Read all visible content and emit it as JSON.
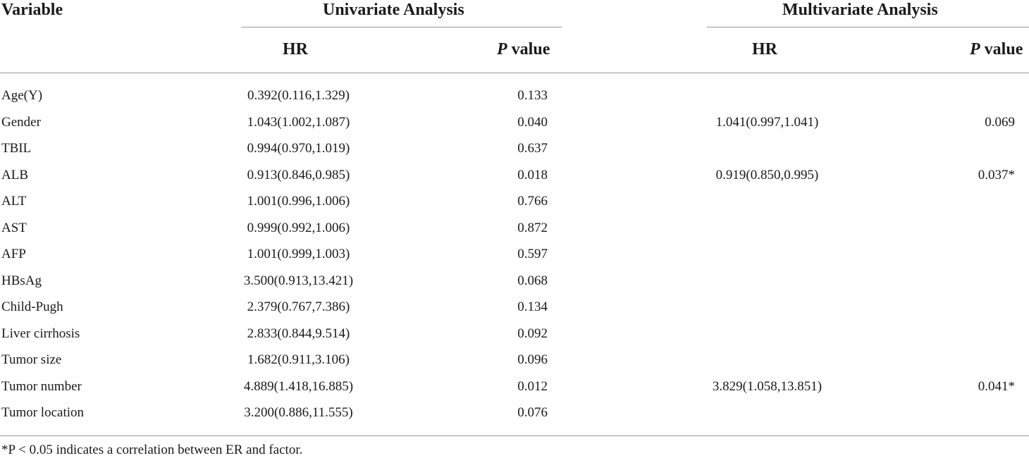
{
  "table": {
    "headers": {
      "variable": "Variable",
      "univariate": "Univariate Analysis",
      "multivariate": "Multivariate Analysis",
      "hr": "HR",
      "p_italic": "P",
      "p_rest": " value"
    },
    "rows": [
      {
        "variable": "Age(Y)",
        "uni_hr": "0.392(0.116,1.329)",
        "uni_p": "0.133",
        "multi_hr": "",
        "multi_p": ""
      },
      {
        "variable": "Gender",
        "uni_hr": "1.043(1.002,1.087)",
        "uni_p": "0.040",
        "multi_hr": "1.041(0.997,1.041)",
        "multi_p": "0.069"
      },
      {
        "variable": "TBIL",
        "uni_hr": "0.994(0.970,1.019)",
        "uni_p": "0.637",
        "multi_hr": "",
        "multi_p": ""
      },
      {
        "variable": "ALB",
        "uni_hr": "0.913(0.846,0.985)",
        "uni_p": "0.018",
        "multi_hr": "0.919(0.850,0.995)",
        "multi_p": "0.037*"
      },
      {
        "variable": "ALT",
        "uni_hr": "1.001(0.996,1.006)",
        "uni_p": "0.766",
        "multi_hr": "",
        "multi_p": ""
      },
      {
        "variable": "AST",
        "uni_hr": "0.999(0.992,1.006)",
        "uni_p": "0.872",
        "multi_hr": "",
        "multi_p": ""
      },
      {
        "variable": "AFP",
        "uni_hr": "1.001(0.999,1.003)",
        "uni_p": "0.597",
        "multi_hr": "",
        "multi_p": ""
      },
      {
        "variable": "HBsAg",
        "uni_hr": "3.500(0.913,13.421)",
        "uni_p": "0.068",
        "multi_hr": "",
        "multi_p": ""
      },
      {
        "variable": "Child-Pugh",
        "uni_hr": "2.379(0.767,7.386)",
        "uni_p": "0.134",
        "multi_hr": "",
        "multi_p": ""
      },
      {
        "variable": "Liver cirrhosis",
        "uni_hr": "2.833(0.844,9.514)",
        "uni_p": "0.092",
        "multi_hr": "",
        "multi_p": ""
      },
      {
        "variable": "Tumor size",
        "uni_hr": "1.682(0.911,3.106)",
        "uni_p": "0.096",
        "multi_hr": "",
        "multi_p": ""
      },
      {
        "variable": "Tumor number",
        "uni_hr": "4.889(1.418,16.885)",
        "uni_p": "0.012",
        "multi_hr": "3.829(1.058,13.851)",
        "multi_p": "0.041*"
      },
      {
        "variable": "Tumor location",
        "uni_hr": "3.200(0.886,11.555)",
        "uni_p": "0.076",
        "multi_hr": "",
        "multi_p": ""
      }
    ],
    "footnote": "*P < 0.05 indicates a correlation between ER and factor."
  }
}
